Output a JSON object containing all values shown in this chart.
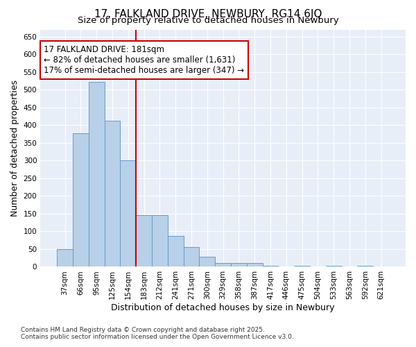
{
  "title": "17, FALKLAND DRIVE, NEWBURY, RG14 6JQ",
  "subtitle": "Size of property relative to detached houses in Newbury",
  "xlabel": "Distribution of detached houses by size in Newbury",
  "ylabel": "Number of detached properties",
  "categories": [
    "37sqm",
    "66sqm",
    "95sqm",
    "125sqm",
    "154sqm",
    "183sqm",
    "212sqm",
    "241sqm",
    "271sqm",
    "300sqm",
    "329sqm",
    "358sqm",
    "387sqm",
    "417sqm",
    "446sqm",
    "475sqm",
    "504sqm",
    "533sqm",
    "563sqm",
    "592sqm",
    "621sqm"
  ],
  "values": [
    50,
    378,
    522,
    413,
    300,
    145,
    145,
    87,
    55,
    28,
    10,
    10,
    10,
    2,
    0,
    2,
    0,
    2,
    0,
    2,
    0
  ],
  "bar_color": "#b8d0e8",
  "bar_edge_color": "#6699cc",
  "vline_x": 5,
  "vline_color": "#cc0000",
  "annotation_text": "17 FALKLAND DRIVE: 181sqm\n← 82% of detached houses are smaller (1,631)\n17% of semi-detached houses are larger (347) →",
  "annotation_box_color": "#cc0000",
  "annotation_text_color": "#000000",
  "ylim": [
    0,
    670
  ],
  "yticks": [
    0,
    50,
    100,
    150,
    200,
    250,
    300,
    350,
    400,
    450,
    500,
    550,
    600,
    650
  ],
  "background_color": "#e8eef8",
  "footer": "Contains HM Land Registry data © Crown copyright and database right 2025.\nContains public sector information licensed under the Open Government Licence v3.0.",
  "title_fontsize": 11,
  "subtitle_fontsize": 9.5,
  "axis_label_fontsize": 9,
  "tick_fontsize": 7.5,
  "annotation_fontsize": 8.5,
  "footer_fontsize": 6.5
}
